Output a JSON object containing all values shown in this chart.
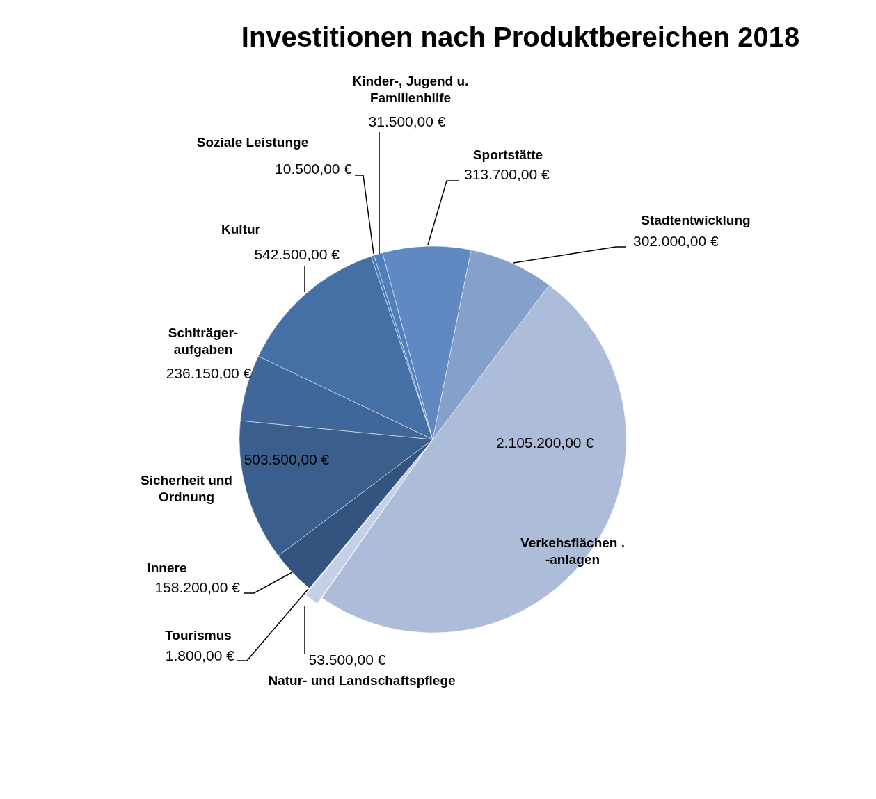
{
  "chart_data": {
    "type": "pie",
    "title": "Investitionen nach Produktbereichen 2018",
    "categories": [
      "Verkehsflächen . -anlagen",
      "Natur- und Landschaftspflege",
      "Tourismus",
      "Innere",
      "Sicherheit und Ordnung",
      "Schlträger-aufgaben",
      "Kultur",
      "Soziale Leistunge",
      "Kinder-, Jugend u. Familienhilfe",
      "Sportstätte",
      "Stadtentwicklung"
    ],
    "values": [
      2105200,
      53500,
      1800,
      158200,
      503500,
      236150,
      542500,
      10500,
      31500,
      313700,
      302000
    ],
    "value_labels": [
      "2.105.200,00 €",
      "53.500,00 €",
      "1.800,00 €",
      "158.200,00 €",
      "503.500,00 €",
      "236.150,00 €",
      "542.500,00 €",
      "10.500,00 €",
      "31.500,00 €",
      "313.700,00 €",
      "302.000,00 €"
    ],
    "colors": [
      "#adbcd9",
      "#c5d0e6",
      "#b9c7e0",
      "#33547e",
      "#3a5f8c",
      "#3f679a",
      "#4470a6",
      "#4a78b2",
      "#4f7fbd",
      "#6189c1",
      "#84a0cb"
    ],
    "legend": false
  }
}
